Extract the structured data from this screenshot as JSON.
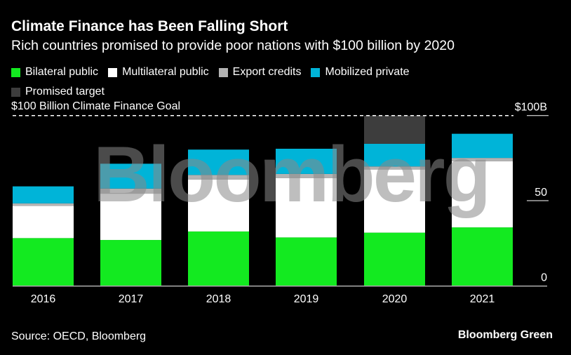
{
  "chart_data": {
    "type": "bar",
    "stacked": true,
    "title": "Climate Finance has Been Falling Short",
    "subtitle": "Rich countries promised to provide poor nations with $100 billion by 2020",
    "categories": [
      "2016",
      "2017",
      "2018",
      "2019",
      "2020",
      "2021"
    ],
    "series": [
      {
        "name": "Bilateral public",
        "color": "#13ea20",
        "values": [
          28.0,
          26.9,
          31.9,
          28.4,
          31.2,
          34.3
        ]
      },
      {
        "name": "Multilateral public",
        "color": "#ffffff",
        "values": [
          19.0,
          27.2,
          30.5,
          34.8,
          37.1,
          38.8
        ]
      },
      {
        "name": "Export credits",
        "color": "#b3b3b3",
        "values": [
          1.4,
          3.0,
          2.7,
          2.5,
          1.8,
          2.0
        ]
      },
      {
        "name": "Mobilized private",
        "color": "#00b4d8",
        "values": [
          10.0,
          14.6,
          14.9,
          14.8,
          13.3,
          14.2
        ]
      },
      {
        "name": "Promised target",
        "color": "#3d3d3d",
        "values": [
          0,
          0,
          0,
          0,
          16.6,
          0
        ]
      }
    ],
    "ylim": [
      0,
      100
    ],
    "yticks": [
      {
        "value": 0,
        "label": "0"
      },
      {
        "value": 50,
        "label": "50"
      },
      {
        "value": 100,
        "label": "$100B"
      }
    ],
    "reference_line": {
      "value": 100,
      "label": "$100 Billion Climate Finance Goal",
      "style": "dashed"
    },
    "grid": false,
    "legend_placement": "top-left"
  },
  "source": "Source: OECD, Bloomberg",
  "brand": "Bloomberg Green",
  "watermark": "Bloomberg"
}
